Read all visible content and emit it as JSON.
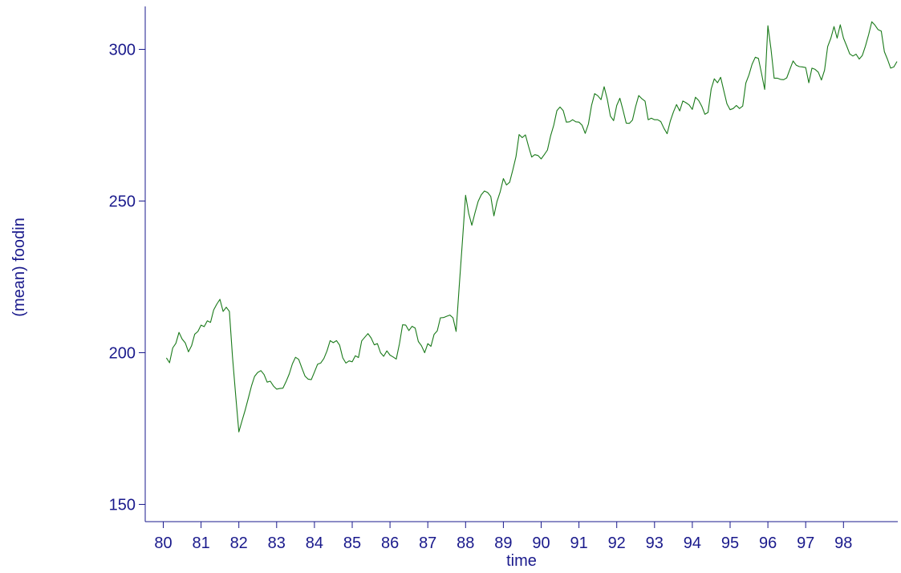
{
  "chart_data": {
    "type": "line",
    "title": "",
    "xlabel": "time",
    "ylabel": "(mean) foodin",
    "xlim": [
      80.0,
      99.0
    ],
    "ylim": [
      150,
      300
    ],
    "xticks": [
      {
        "value": 80,
        "label": "80"
      },
      {
        "value": 81,
        "label": "81"
      },
      {
        "value": 82,
        "label": "82"
      },
      {
        "value": 83,
        "label": "83"
      },
      {
        "value": 84,
        "label": "84"
      },
      {
        "value": 85,
        "label": "85"
      },
      {
        "value": 86,
        "label": "86"
      },
      {
        "value": 87,
        "label": "87"
      },
      {
        "value": 88,
        "label": "88"
      },
      {
        "value": 89,
        "label": "89"
      },
      {
        "value": 90,
        "label": "90"
      },
      {
        "value": 91,
        "label": "91"
      },
      {
        "value": 92,
        "label": "92"
      },
      {
        "value": 93,
        "label": "93"
      },
      {
        "value": 94,
        "label": "94"
      },
      {
        "value": 95,
        "label": "95"
      },
      {
        "value": 96,
        "label": "96"
      },
      {
        "value": 97,
        "label": "97"
      },
      {
        "value": 98,
        "label": "98"
      }
    ],
    "yticks": [
      {
        "value": 150,
        "label": "150"
      },
      {
        "value": 200,
        "label": "200"
      },
      {
        "value": 250,
        "label": "250"
      },
      {
        "value": 300,
        "label": "300"
      }
    ],
    "grid": false,
    "colors": {
      "series": "#1a7a1a",
      "axis": "#1a1a8c"
    },
    "series": [
      {
        "x_start": 80.0833,
        "x_step": 0.08333,
        "values": [
          198.3,
          196.7,
          201.6,
          203.1,
          206.7,
          204.5,
          203.2,
          200.3,
          202.3,
          206.1,
          207.0,
          209.1,
          208.6,
          210.5,
          210.0,
          214.1,
          216.0,
          217.6,
          213.6,
          215.0,
          213.6,
          198.6,
          185.8,
          173.9,
          177.5,
          181.0,
          185.0,
          189.0,
          192.2,
          193.5,
          194.1,
          192.8,
          190.3,
          190.6,
          189.0,
          188.0,
          188.2,
          188.3,
          190.5,
          193.0,
          196.3,
          198.5,
          197.8,
          195.0,
          192.3,
          191.3,
          191.1,
          193.6,
          196.2,
          196.6,
          198.1,
          200.6,
          204.0,
          203.3,
          204.0,
          202.5,
          198.3,
          196.6,
          197.3,
          197.0,
          199.0,
          198.4,
          203.9,
          205.1,
          206.3,
          204.9,
          202.6,
          203.0,
          200.0,
          198.8,
          200.6,
          199.2,
          198.6,
          197.9,
          203.0,
          209.2,
          209.1,
          207.3,
          208.7,
          208.1,
          203.7,
          202.3,
          200.0,
          203.0,
          202.1,
          206.0,
          207.2,
          211.5,
          211.6,
          212.0,
          212.4,
          211.5,
          207.0,
          222.0,
          236.9,
          251.9,
          245.9,
          242.0,
          246.2,
          249.9,
          252.1,
          253.3,
          252.8,
          251.5,
          245.1,
          249.9,
          253.1,
          257.4,
          255.3,
          256.2,
          260.3,
          264.6,
          271.9,
          270.9,
          271.8,
          268.0,
          264.5,
          265.3,
          265.0,
          263.9,
          265.3,
          266.8,
          271.5,
          275.0,
          279.8,
          281.0,
          279.8,
          276.0,
          276.1,
          276.8,
          276.1,
          276.0,
          275.0,
          272.3,
          275.4,
          281.5,
          285.4,
          284.7,
          283.4,
          287.7,
          283.6,
          278.0,
          276.5,
          281.5,
          283.9,
          280.0,
          275.7,
          275.6,
          276.7,
          281.1,
          284.8,
          283.7,
          282.9,
          276.8,
          277.3,
          276.8,
          276.8,
          276.2,
          274.0,
          272.2,
          276.3,
          279.3,
          281.8,
          279.7,
          283.0,
          282.4,
          281.7,
          280.2,
          284.2,
          283.2,
          281.3,
          278.6,
          279.2,
          286.9,
          290.3,
          289.0,
          290.8,
          286.4,
          282.1,
          280.1,
          280.5,
          281.5,
          280.5,
          281.3,
          288.9,
          291.6,
          295.1,
          297.4,
          297.0,
          292.0,
          286.8,
          307.8,
          300.0,
          290.5,
          290.5,
          290.1,
          290.0,
          290.6,
          293.4,
          296.2,
          294.8,
          294.3,
          294.2,
          294.0,
          289.0,
          293.8,
          293.4,
          292.5,
          289.9,
          293.1,
          300.9,
          303.7,
          307.5,
          303.7,
          308.1,
          303.7,
          301.2,
          298.5,
          297.8,
          298.4,
          296.8,
          298.0,
          301.1,
          304.9,
          309.1,
          308.0,
          306.5,
          306.0,
          299.2,
          296.7,
          293.8,
          294.2,
          296.0
        ]
      }
    ]
  }
}
